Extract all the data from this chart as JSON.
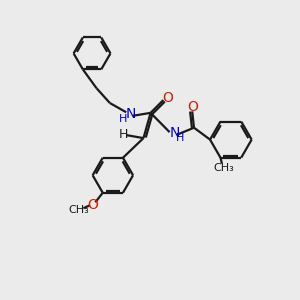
{
  "bg_color": "#ebebeb",
  "bond_color": "#1a1a1a",
  "N_color": "#0000cd",
  "O_color": "#cc2200",
  "line_width": 1.6,
  "font_size_atom": 10,
  "fig_size": [
    3.0,
    3.0
  ],
  "dpi": 100,
  "xlim": [
    0,
    10
  ],
  "ylim": [
    0,
    10
  ]
}
